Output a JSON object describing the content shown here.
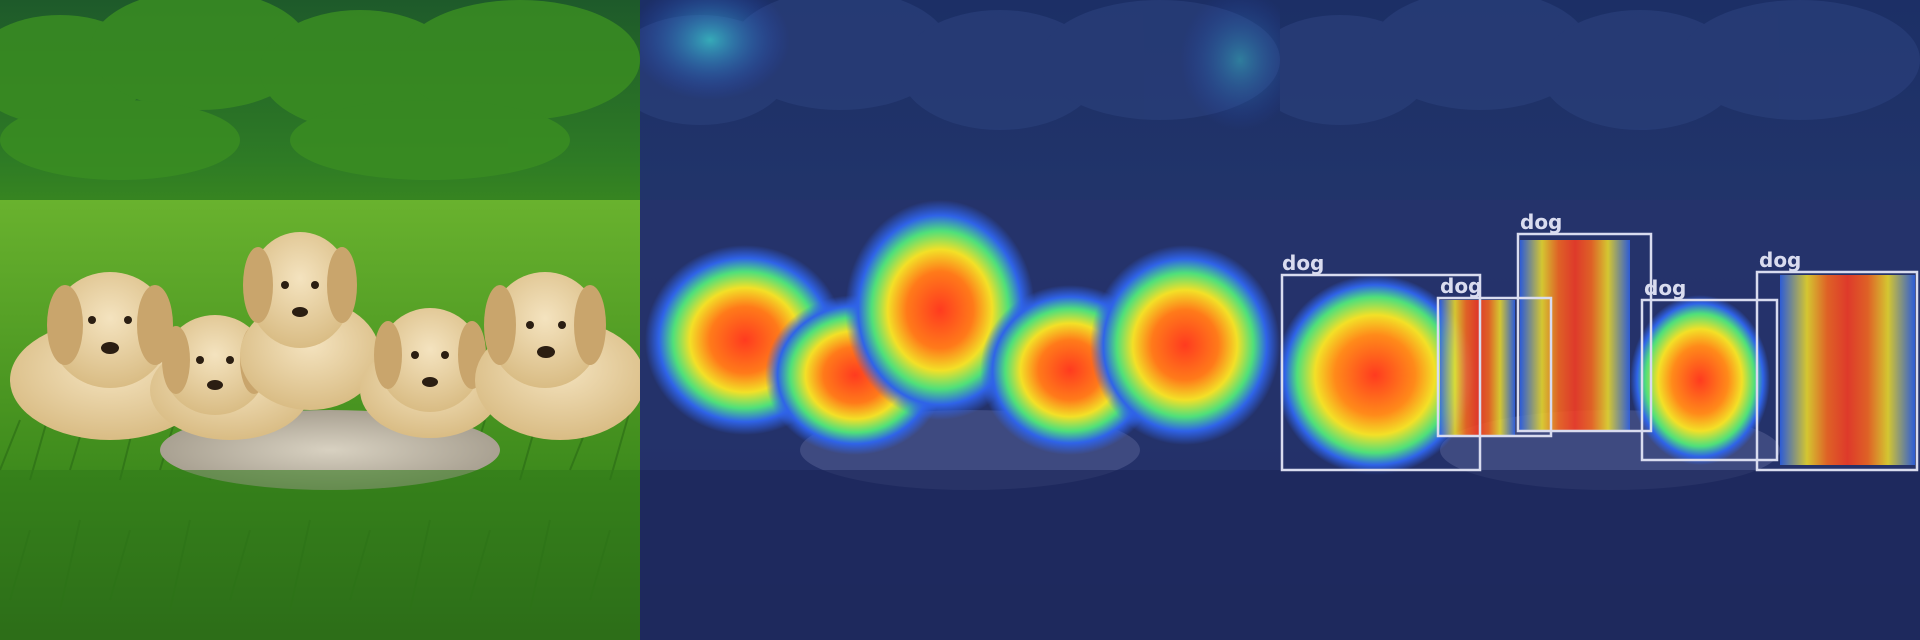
{
  "panels": [
    {
      "name": "original"
    },
    {
      "name": "attention-heatmap"
    },
    {
      "name": "detections"
    }
  ],
  "detections": [
    {
      "label": "dog"
    },
    {
      "label": "dog"
    },
    {
      "label": "dog"
    },
    {
      "label": "dog"
    },
    {
      "label": "dog"
    }
  ],
  "colors": {
    "sky_grass": "#2f6b2a",
    "grass": "#4f9e2a",
    "puppy_fur": "#e7cf9e",
    "rock": "#c9c2b2",
    "overlay_blue": "#1b2a8c",
    "box_stroke": "#d9dcef",
    "label_text": "#d9dcef"
  }
}
